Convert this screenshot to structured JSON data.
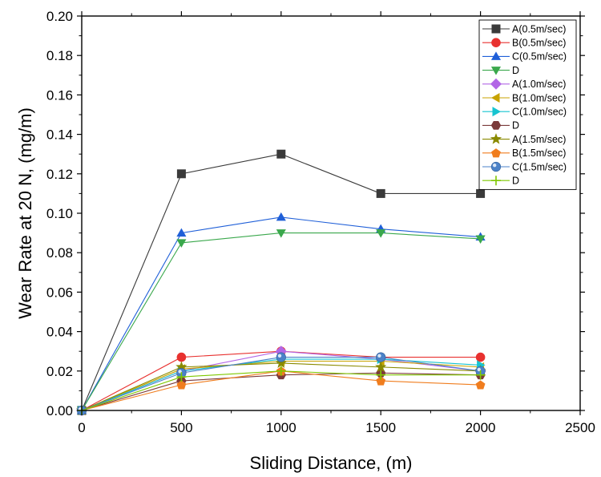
{
  "chart_data": {
    "type": "line",
    "xlabel": "Sliding Distance, (m)",
    "ylabel": "Wear Rate at 20 N, (mg/m)",
    "xlim": [
      0,
      2500
    ],
    "ylim": [
      0,
      0.2
    ],
    "x_ticks": [
      "0",
      "500",
      "1000",
      "1500",
      "2000",
      "2500"
    ],
    "y_ticks": [
      "0.00",
      "0.02",
      "0.04",
      "0.06",
      "0.08",
      "0.10",
      "0.12",
      "0.14",
      "0.16",
      "0.18",
      "0.20"
    ],
    "x": [
      0,
      500,
      1000,
      1500,
      2000
    ],
    "grid": false,
    "legend_position": "top-right",
    "series": [
      {
        "name": "A(0.5m/sec)",
        "color": "#3a3a3a",
        "marker": "square",
        "values": [
          0,
          0.12,
          0.13,
          0.11,
          0.11
        ]
      },
      {
        "name": "B(0.5m/sec)",
        "color": "#e8312f",
        "marker": "circle",
        "values": [
          0,
          0.027,
          0.03,
          0.027,
          0.027
        ]
      },
      {
        "name": "C(0.5m/sec)",
        "color": "#1f5fd8",
        "marker": "triangle-up",
        "values": [
          0,
          0.09,
          0.098,
          0.092,
          0.088
        ]
      },
      {
        "name": "D",
        "color": "#3aa84c",
        "marker": "triangle-down",
        "values": [
          0,
          0.085,
          0.09,
          0.09,
          0.087
        ]
      },
      {
        "name": "A(1.0m/sec)",
        "color": "#b266e6",
        "marker": "diamond",
        "values": [
          0,
          0.02,
          0.03,
          0.026,
          0.02
        ]
      },
      {
        "name": "B(1.0m/sec)",
        "color": "#c8a300",
        "marker": "triangle-left",
        "values": [
          0,
          0.021,
          0.025,
          0.025,
          0.022
        ]
      },
      {
        "name": "C(1.0m/sec)",
        "color": "#17c4d0",
        "marker": "triangle-right",
        "values": [
          0,
          0.02,
          0.026,
          0.026,
          0.023
        ]
      },
      {
        "name": "D",
        "color": "#7b3a3a",
        "marker": "hexagon",
        "values": [
          0,
          0.015,
          0.018,
          0.019,
          0.018
        ]
      },
      {
        "name": "A(1.5m/sec)",
        "color": "#8a8a00",
        "marker": "star",
        "values": [
          0,
          0.022,
          0.024,
          0.022,
          0.02
        ]
      },
      {
        "name": "B(1.5m/sec)",
        "color": "#f07d1e",
        "marker": "pentagon",
        "values": [
          0,
          0.013,
          0.02,
          0.015,
          0.013
        ]
      },
      {
        "name": "C(1.5m/sec)",
        "color": "#4b82c8",
        "marker": "sphere",
        "values": [
          0,
          0.019,
          0.027,
          0.027,
          0.02
        ]
      },
      {
        "name": "D",
        "color": "#7ec800",
        "marker": "plus",
        "values": [
          0,
          0.017,
          0.02,
          0.018,
          0.018
        ]
      }
    ]
  }
}
